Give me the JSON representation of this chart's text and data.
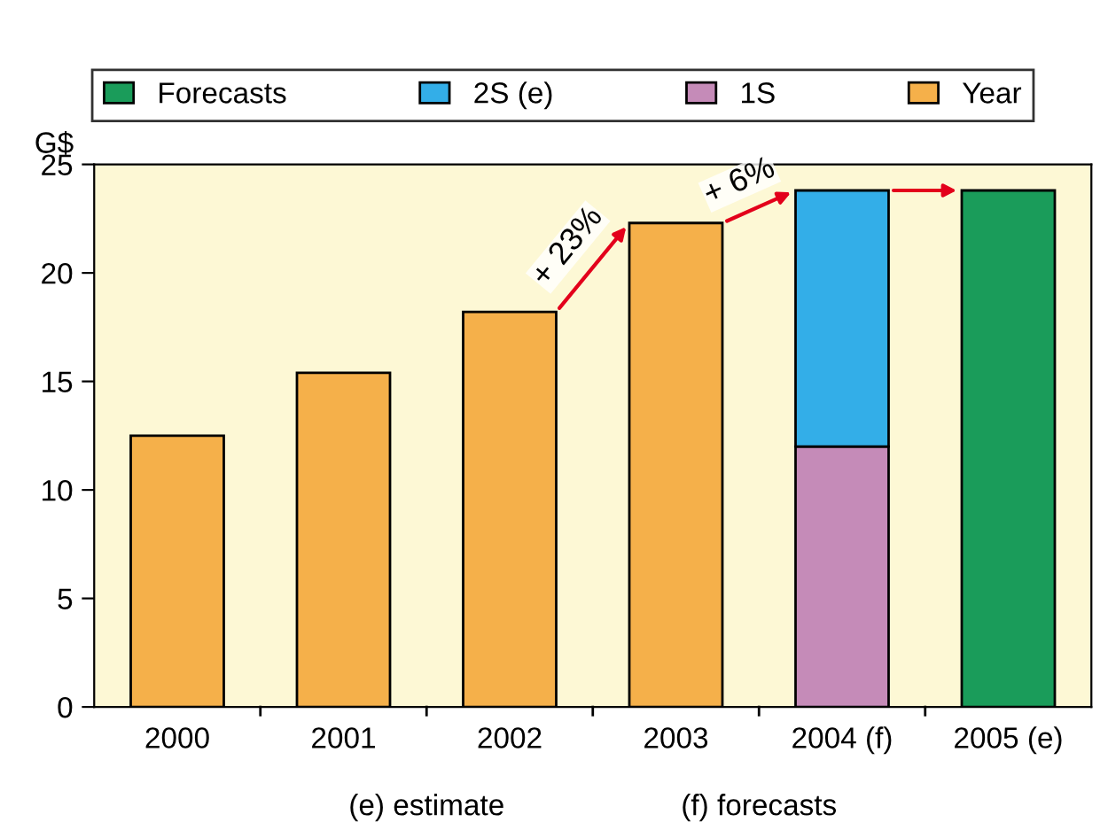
{
  "chart_data": {
    "type": "bar",
    "stacked": true,
    "ylabel": "G$",
    "categories": [
      "2000",
      "2001",
      "2002",
      "2003",
      "2004 (f)",
      "2005 (e)"
    ],
    "series": [
      {
        "name": "Year",
        "color": "#f5b04a",
        "values": [
          12.5,
          15.4,
          18.2,
          22.3,
          null,
          null
        ]
      },
      {
        "name": "1S",
        "color": "#c58bb8",
        "values": [
          null,
          null,
          null,
          null,
          12.0,
          null
        ]
      },
      {
        "name": "2S (e)",
        "color": "#33aee8",
        "values": [
          null,
          null,
          null,
          null,
          11.8,
          null
        ]
      },
      {
        "name": "Forecasts",
        "color": "#1a9c5a",
        "values": [
          null,
          null,
          null,
          null,
          null,
          23.8
        ]
      }
    ],
    "ylim": [
      0,
      25
    ],
    "yticks": [
      0,
      5,
      10,
      15,
      20,
      25
    ],
    "grid": false,
    "legend": "top",
    "annotations": [
      {
        "text": "+ 23%",
        "x": "2003",
        "y": 22.3
      },
      {
        "text": "+ 6%",
        "x": "2004 (f)",
        "y": 23.8
      },
      "(e) estimate",
      "(f) forecasts"
    ]
  }
}
